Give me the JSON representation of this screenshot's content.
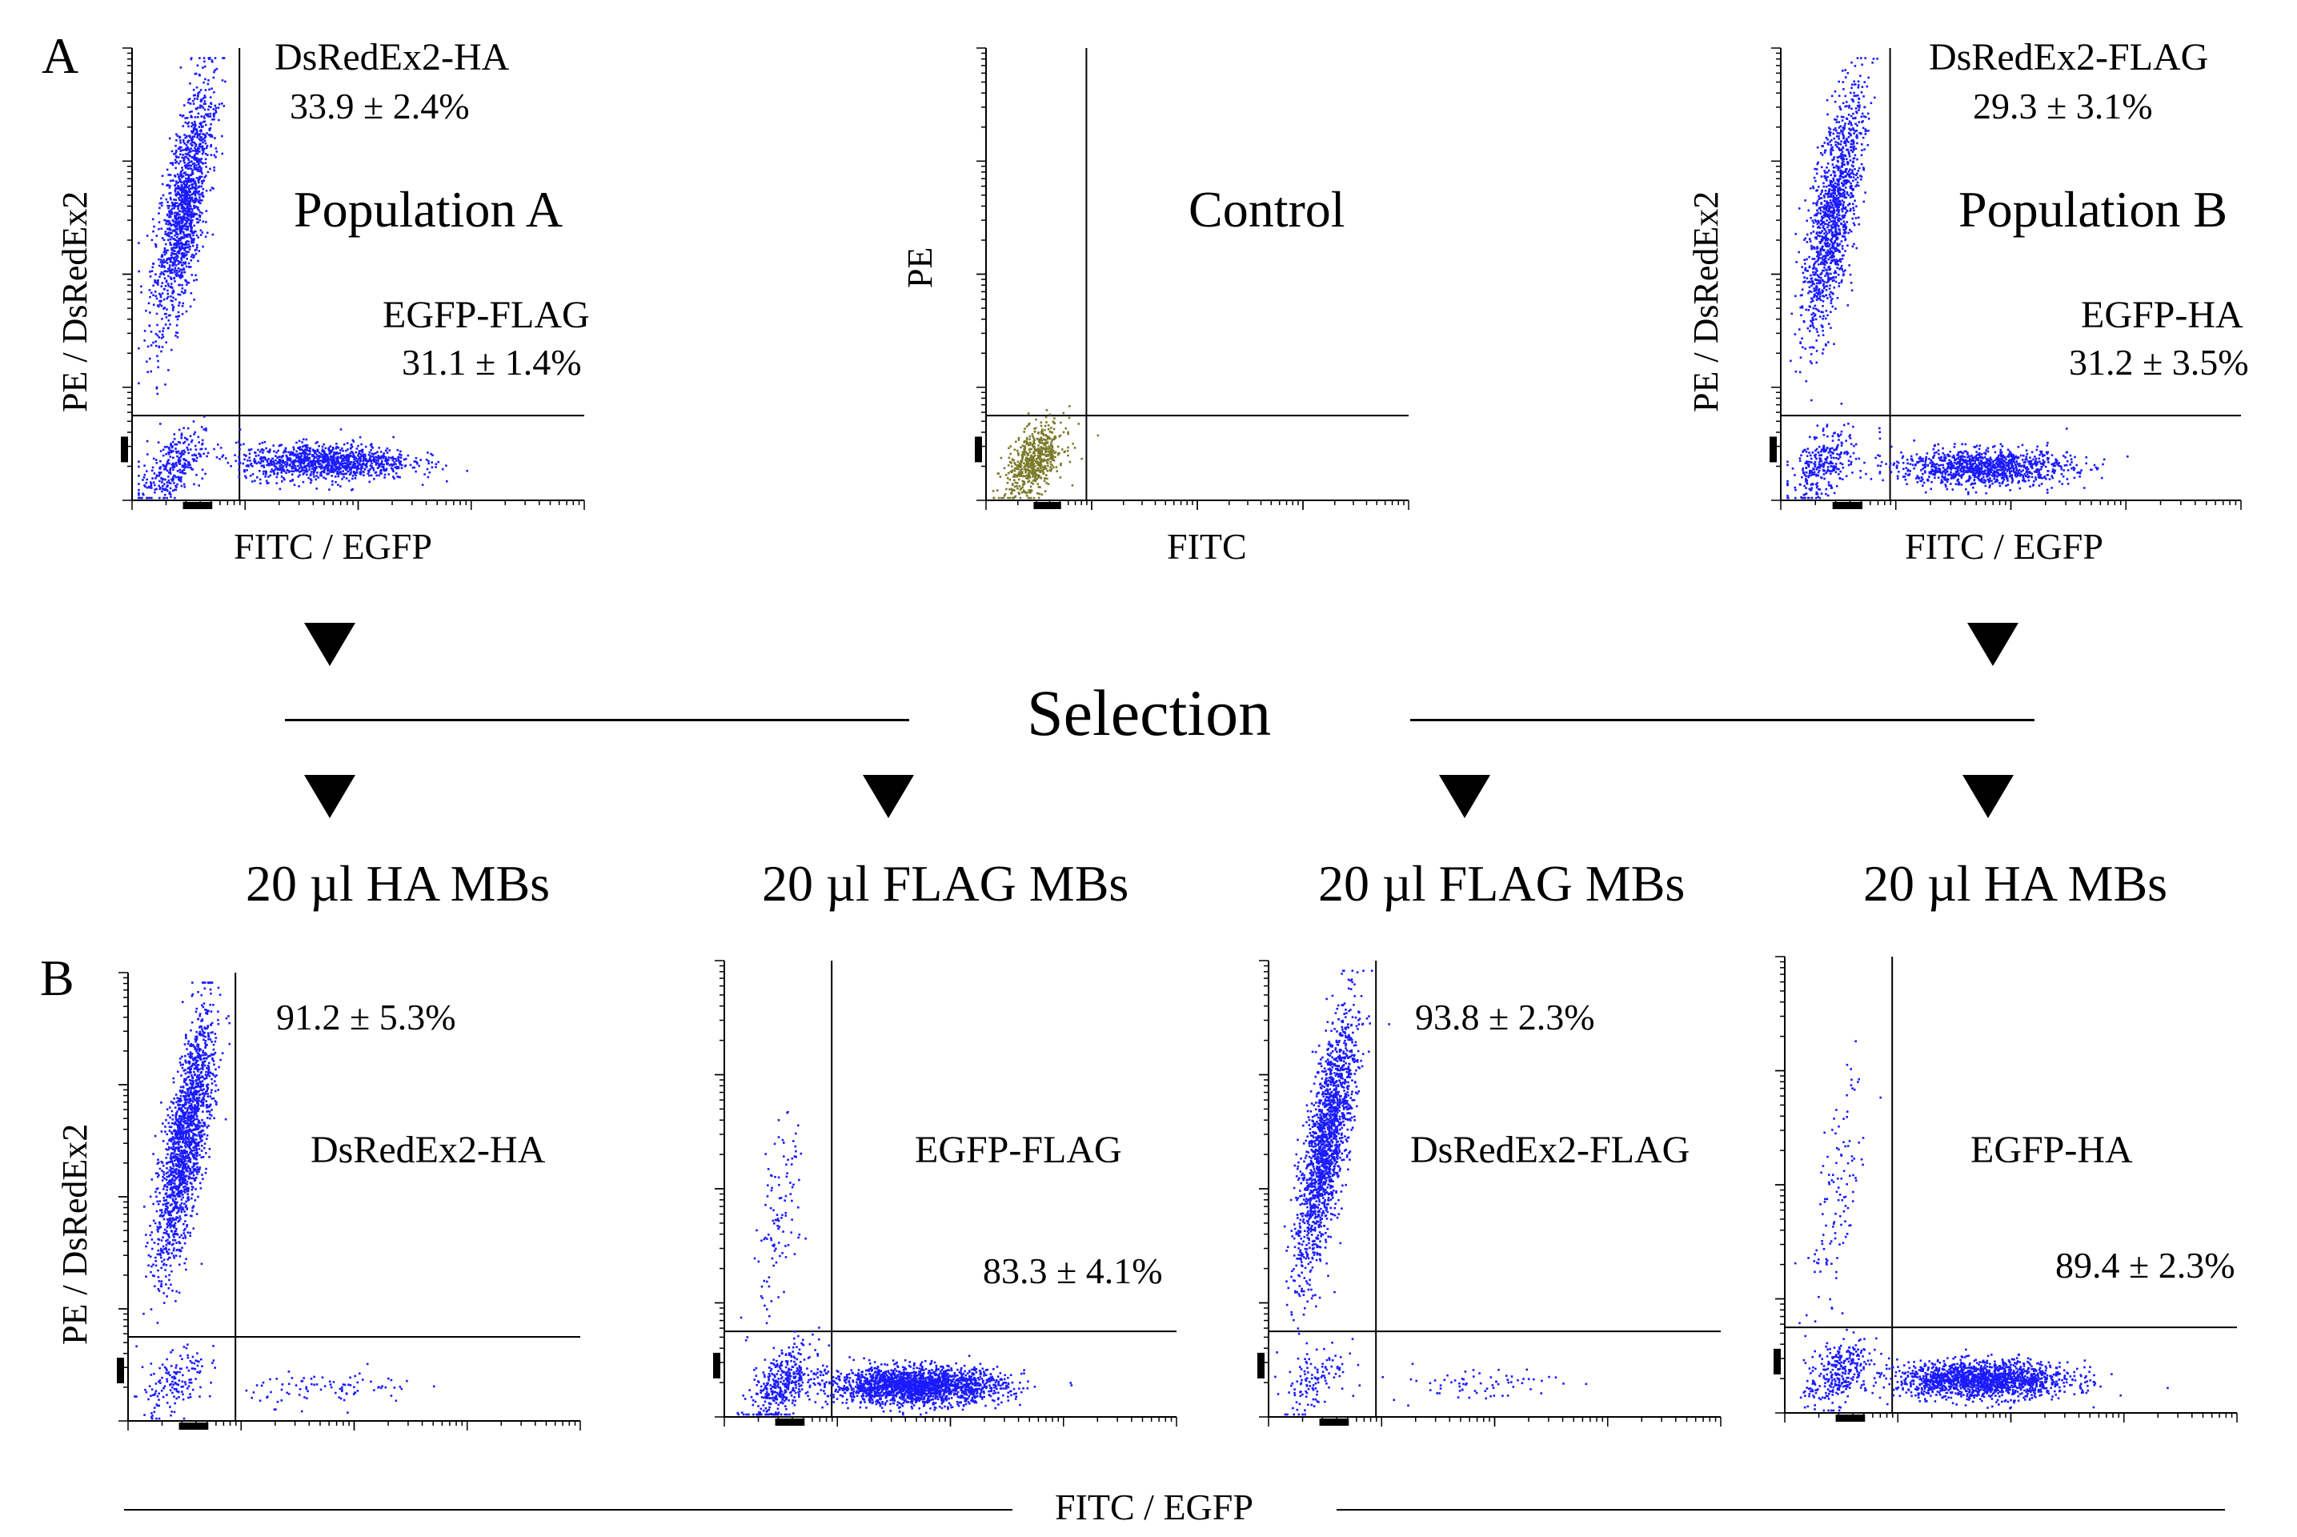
{
  "figure": {
    "panel_a_letter": "A",
    "panel_b_letter": "B",
    "selection_label": "Selection",
    "bottom_axis_label": "FITC / EGFP",
    "mb_labels": [
      "20 µl HA MBs",
      "20 µl FLAG MBs",
      "20 µl FLAG MBs",
      "20 µl HA MBs"
    ],
    "colors": {
      "dots": "#1a1aff",
      "control_dots": "#7a7a2a",
      "lines": "#000000"
    }
  },
  "chart_data": [
    {
      "id": "a1",
      "type": "scatter",
      "title": "Population A",
      "xlabel": "FITC / EGFP",
      "ylabel": "PE / DsRedEx2",
      "labels": [
        {
          "text": "DsRedEx2-HA",
          "value": "33.9 ± 2.4%"
        },
        {
          "text": "EGFP-FLAG",
          "value": "31.1 ± 1.4%"
        }
      ],
      "gate": {
        "x_decade": 0.95,
        "y_decade": 0.75
      },
      "clusters": [
        {
          "name": "DsRedEx2+",
          "x_decade": 0.45,
          "y_decade": 2.6,
          "count": 1400,
          "dot_color": "#1a1aff"
        },
        {
          "name": "double negative",
          "x_decade": 0.35,
          "y_decade": 0.3,
          "count": 300,
          "dot_color": "#1a1aff"
        },
        {
          "name": "EGFP+",
          "x_decade": 1.7,
          "y_decade": 0.35,
          "count": 1100,
          "dot_color": "#1a1aff"
        }
      ]
    },
    {
      "id": "ctrl",
      "type": "scatter",
      "title": "Control",
      "xlabel": "FITC",
      "ylabel": "PE",
      "labels": [],
      "gate": {
        "x_decade": 0.95,
        "y_decade": 0.75
      },
      "clusters": [
        {
          "name": "unstained",
          "x_decade": 0.45,
          "y_decade": 0.35,
          "count": 600,
          "dot_color": "#7a7a2a"
        }
      ]
    },
    {
      "id": "a2",
      "type": "scatter",
      "title": "Population B",
      "xlabel": "FITC / EGFP",
      "ylabel": "PE / DsRedEx2",
      "labels": [
        {
          "text": "DsRedEx2-FLAG",
          "value": "29.3 ± 3.1%"
        },
        {
          "text": "EGFP-HA",
          "value": "31.2 ± 3.5%"
        }
      ],
      "gate": {
        "x_decade": 0.95,
        "y_decade": 0.75
      },
      "clusters": [
        {
          "name": "DsRedEx2+",
          "x_decade": 0.45,
          "y_decade": 2.55,
          "count": 1300,
          "dot_color": "#1a1aff"
        },
        {
          "name": "double negative",
          "x_decade": 0.35,
          "y_decade": 0.3,
          "count": 300,
          "dot_color": "#1a1aff"
        },
        {
          "name": "EGFP+",
          "x_decade": 1.75,
          "y_decade": 0.3,
          "count": 1100,
          "dot_color": "#1a1aff"
        }
      ]
    },
    {
      "id": "b1",
      "type": "scatter",
      "title": "",
      "xlabel": "",
      "ylabel": "PE / DsRedEx2",
      "labels": [
        {
          "text": "DsRedEx2-HA",
          "value": "91.2 ± 5.3%"
        }
      ],
      "gate": {
        "x_decade": 0.95,
        "y_decade": 0.75
      },
      "clusters": [
        {
          "name": "DsRedEx2+",
          "x_decade": 0.5,
          "y_decade": 2.5,
          "count": 1700,
          "dot_color": "#1a1aff"
        },
        {
          "name": "double negative",
          "x_decade": 0.4,
          "y_decade": 0.35,
          "count": 150,
          "dot_color": "#1a1aff"
        },
        {
          "name": "EGFP+",
          "x_decade": 1.8,
          "y_decade": 0.3,
          "count": 90,
          "dot_color": "#1a1aff"
        }
      ]
    },
    {
      "id": "b2",
      "type": "scatter",
      "title": "",
      "xlabel": "",
      "ylabel": "",
      "labels": [
        {
          "text": "EGFP-FLAG",
          "value": "83.3 ± 4.1%"
        }
      ],
      "gate": {
        "x_decade": 0.95,
        "y_decade": 0.75
      },
      "clusters": [
        {
          "name": "DsRedEx2+",
          "x_decade": 0.45,
          "y_decade": 1.8,
          "count": 110,
          "dot_color": "#1a1aff"
        },
        {
          "name": "double negative",
          "x_decade": 0.5,
          "y_decade": 0.3,
          "count": 400,
          "dot_color": "#1a1aff"
        },
        {
          "name": "EGFP+",
          "x_decade": 1.7,
          "y_decade": 0.28,
          "count": 2000,
          "dot_color": "#1a1aff"
        }
      ]
    },
    {
      "id": "b3",
      "type": "scatter",
      "title": "",
      "xlabel": "",
      "ylabel": "",
      "labels": [
        {
          "text": "DsRedEx2-FLAG",
          "value": "93.8 ± 2.3%"
        }
      ],
      "gate": {
        "x_decade": 0.95,
        "y_decade": 0.75
      },
      "clusters": [
        {
          "name": "DsRedEx2+",
          "x_decade": 0.5,
          "y_decade": 2.4,
          "count": 1700,
          "dot_color": "#1a1aff"
        },
        {
          "name": "double negative",
          "x_decade": 0.4,
          "y_decade": 0.35,
          "count": 120,
          "dot_color": "#1a1aff"
        },
        {
          "name": "EGFP+",
          "x_decade": 1.8,
          "y_decade": 0.3,
          "count": 70,
          "dot_color": "#1a1aff"
        }
      ]
    },
    {
      "id": "b4",
      "type": "scatter",
      "title": "",
      "xlabel": "",
      "ylabel": "",
      "labels": [
        {
          "text": "EGFP-HA",
          "value": "89.4 ± 2.3%"
        }
      ],
      "gate": {
        "x_decade": 0.95,
        "y_decade": 0.75
      },
      "clusters": [
        {
          "name": "DsRedEx2+",
          "x_decade": 0.45,
          "y_decade": 1.9,
          "count": 120,
          "dot_color": "#1a1aff"
        },
        {
          "name": "double negative",
          "x_decade": 0.45,
          "y_decade": 0.35,
          "count": 300,
          "dot_color": "#1a1aff"
        },
        {
          "name": "EGFP+",
          "x_decade": 1.75,
          "y_decade": 0.3,
          "count": 1600,
          "dot_color": "#1a1aff"
        }
      ]
    }
  ]
}
